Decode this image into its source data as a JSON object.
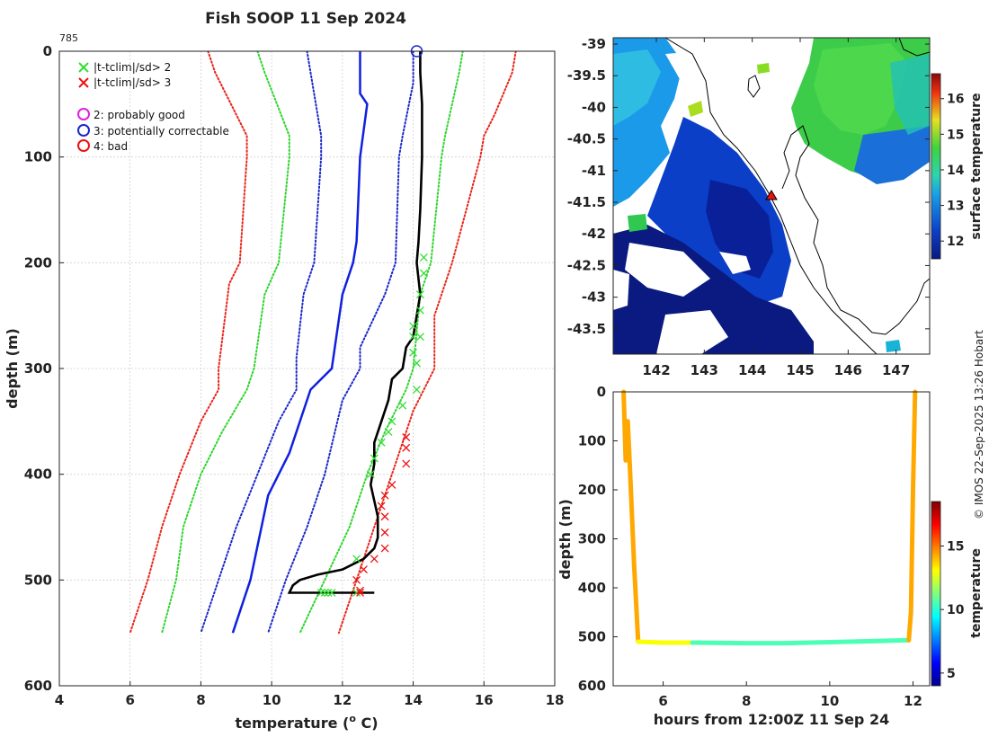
{
  "title": "Fish SOOP 11 Sep 2024",
  "profile_id": "785",
  "copyright": "© IMOS 22-Sep-2025 13:26 Hobart",
  "legend": {
    "flag_sd2": "|t-tclim|/sd> 2",
    "flag_sd3": "|t-tclim|/sd> 3",
    "qc2": "2: probably good",
    "qc3": "3: potentially correctable",
    "qc4": "4: bad"
  },
  "colors": {
    "band_red": "#e8251a",
    "band_green": "#2fd42f",
    "band_blue_dot": "#1a28c8",
    "band_blue": "#1020e0",
    "profile": "#000000",
    "flag2": "#33dd33",
    "flag3": "#ee1111",
    "qc2": "#dd22dd",
    "qc3": "#1a28c8",
    "qc4": "#ee1111"
  },
  "chart_data": [
    {
      "type": "line",
      "title": "Fish SOOP 11 Sep 2024",
      "xlabel": "temperature (° C)",
      "xlabel_prefix": "temperature (",
      "xlabel_sup": "o",
      "xlabel_suffix": " C)",
      "ylabel": "depth (m)",
      "xlim": [
        4,
        18
      ],
      "ylim": [
        0,
        600
      ],
      "x_ticks": [
        4,
        6,
        8,
        10,
        12,
        14,
        16,
        18
      ],
      "y_ticks": [
        0,
        100,
        200,
        300,
        400,
        500,
        600
      ],
      "series": [
        {
          "name": "clim -3sd",
          "style": "dotted",
          "color": "band_red",
          "x": [
            8.2,
            8.4,
            9.3,
            9.3,
            9.1,
            8.8,
            8.5,
            8.5,
            8.0,
            7.4,
            6.9,
            6.5,
            6.0
          ],
          "y": [
            0,
            20,
            80,
            100,
            200,
            220,
            300,
            320,
            350,
            400,
            450,
            500,
            550
          ]
        },
        {
          "name": "clim -2sd",
          "style": "dotted",
          "color": "band_green",
          "x": [
            9.6,
            9.8,
            10.5,
            10.5,
            10.2,
            9.8,
            9.5,
            9.3,
            8.6,
            8.0,
            7.5,
            7.3,
            6.9
          ],
          "y": [
            0,
            20,
            80,
            100,
            200,
            230,
            300,
            320,
            360,
            400,
            450,
            500,
            550
          ]
        },
        {
          "name": "clim -1sd",
          "style": "dotted",
          "color": "band_blue_dot",
          "x": [
            11.0,
            11.1,
            11.4,
            11.4,
            11.2,
            10.9,
            10.7,
            10.7,
            10.2,
            9.6,
            9.0,
            8.5,
            8.0
          ],
          "y": [
            0,
            20,
            80,
            100,
            200,
            230,
            290,
            320,
            350,
            400,
            450,
            500,
            550
          ]
        },
        {
          "name": "climatology mean",
          "style": "solid",
          "color": "band_blue",
          "x": [
            12.5,
            12.5,
            12.7,
            12.5,
            12.4,
            12.3,
            12.0,
            11.7,
            11.1,
            10.5,
            9.9,
            9.4,
            8.9
          ],
          "y": [
            0,
            40,
            50,
            100,
            180,
            200,
            230,
            300,
            320,
            380,
            420,
            500,
            550
          ]
        },
        {
          "name": "clim +1sd",
          "style": "dotted",
          "color": "band_blue_dot",
          "x": [
            14.0,
            14.0,
            13.7,
            13.6,
            13.5,
            13.2,
            12.5,
            12.5,
            12.0,
            11.5,
            11.0,
            10.4,
            9.9
          ],
          "y": [
            0,
            30,
            80,
            100,
            200,
            230,
            280,
            300,
            330,
            400,
            450,
            500,
            550
          ]
        },
        {
          "name": "clim +2sd",
          "style": "dotted",
          "color": "band_green",
          "x": [
            15.4,
            15.3,
            14.9,
            14.8,
            14.5,
            14.2,
            14.0,
            13.8,
            13.2,
            12.7,
            12.2,
            11.5,
            10.8
          ],
          "y": [
            0,
            20,
            80,
            100,
            200,
            230,
            300,
            320,
            360,
            400,
            450,
            500,
            550
          ]
        },
        {
          "name": "clim +3sd",
          "style": "dotted",
          "color": "band_red",
          "x": [
            16.9,
            16.8,
            16.3,
            16.0,
            15.9,
            15.1,
            14.6,
            14.6,
            14.0,
            13.5,
            13.0,
            12.4,
            11.9
          ],
          "y": [
            0,
            20,
            60,
            80,
            100,
            200,
            250,
            300,
            340,
            390,
            440,
            500,
            550
          ]
        },
        {
          "name": "profile",
          "style": "solid",
          "color": "profile",
          "x": [
            14.2,
            14.2,
            14.25,
            14.25,
            14.2,
            14.15,
            14.1,
            14.2,
            14.1,
            14.0,
            13.8,
            13.7,
            13.4,
            13.3,
            13.1,
            12.9,
            12.9,
            12.8,
            13.0,
            13.0,
            12.9,
            12.6,
            12.0,
            11.3,
            10.8,
            10.6,
            10.5,
            12.9
          ],
          "y": [
            0,
            20,
            50,
            100,
            150,
            180,
            200,
            230,
            250,
            270,
            280,
            300,
            310,
            330,
            350,
            370,
            390,
            410,
            440,
            460,
            470,
            480,
            490,
            495,
            500,
            505,
            512,
            512
          ]
        }
      ],
      "flags_sd2": {
        "x": [
          14.3,
          14.3,
          14.2,
          14.2,
          14.0,
          14.0,
          14.2,
          14.0,
          14.1,
          14.1,
          13.7,
          13.4,
          13.3,
          13.1,
          12.9,
          12.8,
          12.4,
          11.4,
          11.5,
          11.6,
          11.7,
          12.4
        ],
        "y": [
          195,
          210,
          230,
          245,
          260,
          270,
          270,
          285,
          295,
          320,
          335,
          350,
          360,
          370,
          385,
          400,
          480,
          512,
          512,
          512,
          512,
          512
        ]
      },
      "flags_sd3": {
        "x": [
          13.8,
          13.8,
          13.8,
          13.4,
          13.2,
          13.1,
          13.2,
          13.2,
          13.2,
          12.9,
          12.6,
          12.4,
          12.5,
          12.5
        ],
        "y": [
          365,
          375,
          390,
          410,
          420,
          430,
          440,
          455,
          470,
          480,
          490,
          500,
          510,
          512
        ]
      },
      "qc_markers": [
        {
          "flag": 3,
          "x": 14.1,
          "y": 0
        }
      ]
    },
    {
      "type": "heatmap",
      "colorbar_label": "surface temperature",
      "xlim": [
        141.1,
        147.7
      ],
      "ylim": [
        -43.9,
        -38.9
      ],
      "x_ticks": [
        142,
        143,
        144,
        145,
        146,
        147
      ],
      "y_ticks": [
        -39,
        -39.5,
        -40,
        -40.5,
        -41,
        -41.5,
        -42,
        -42.5,
        -43,
        -43.5
      ],
      "clim": [
        11.5,
        16.7
      ],
      "colorbar_ticks": [
        12,
        13,
        14,
        15,
        16
      ],
      "station_marker": {
        "lon": 144.3,
        "lat": -41.4
      }
    },
    {
      "type": "scatter",
      "xlabel": "hours from 12:00Z 11 Sep 24",
      "ylabel": "depth (m)",
      "colorbar_label": "temperature",
      "xlim": [
        4.8,
        12.4
      ],
      "ylim": [
        0,
        600
      ],
      "x_ticks": [
        6,
        8,
        10,
        12
      ],
      "y_ticks": [
        0,
        100,
        200,
        300,
        400,
        500,
        600
      ],
      "clim": [
        4,
        18.5
      ],
      "colorbar_ticks": [
        5,
        10,
        15
      ],
      "segments": [
        {
          "x": [
            5.05,
            5.1,
            5.15,
            5.2,
            5.3,
            5.4
          ],
          "y": [
            0,
            140,
            60,
            150,
            350,
            510
          ],
          "temp": 14.3
        },
        {
          "x": [
            5.4,
            6.0,
            6.7
          ],
          "y": [
            510,
            512,
            512
          ],
          "temp": 13.0
        },
        {
          "x": [
            6.7,
            8.0,
            9.0,
            10.0,
            11.0,
            11.9
          ],
          "y": [
            512,
            513,
            513,
            511,
            509,
            507
          ],
          "temp": 10.5
        },
        {
          "x": [
            11.9,
            11.95,
            12.0,
            12.05
          ],
          "y": [
            507,
            450,
            200,
            0
          ],
          "temp": 14.3
        }
      ]
    }
  ]
}
